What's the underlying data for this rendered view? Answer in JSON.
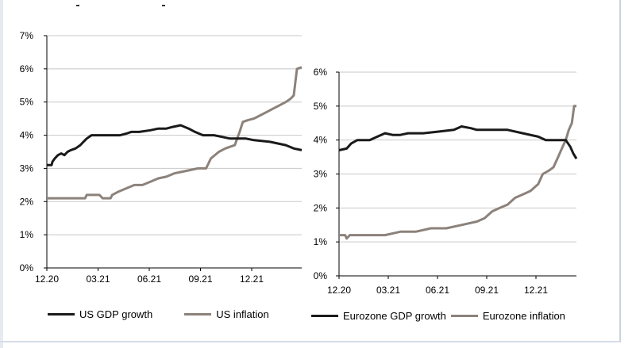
{
  "colors": {
    "gdp": "#1a1a1a",
    "inflation": "#8c827b",
    "grid": "#c8c8c8"
  },
  "chart_data": [
    {
      "type": "line",
      "x_tick_labels": [
        "12.20",
        "03.21",
        "06.21",
        "09.21",
        "12.21"
      ],
      "y_tick_labels": [
        "0%",
        "1%",
        "2%",
        "3%",
        "4%",
        "5%",
        "6%",
        "7%"
      ],
      "ylim": [
        0,
        7
      ],
      "xlim": [
        0,
        16
      ],
      "grid": "horizontal",
      "legend_position": "bottom",
      "series": [
        {
          "name": "US GDP growth",
          "color": "gdp",
          "points": [
            [
              0,
              3.1
            ],
            [
              0.3,
              3.1
            ],
            [
              0.35,
              3.2
            ],
            [
              0.5,
              3.3
            ],
            [
              0.7,
              3.4
            ],
            [
              0.9,
              3.45
            ],
            [
              1.1,
              3.4
            ],
            [
              1.3,
              3.5
            ],
            [
              1.5,
              3.55
            ],
            [
              1.8,
              3.6
            ],
            [
              2.1,
              3.7
            ],
            [
              2.3,
              3.8
            ],
            [
              2.5,
              3.9
            ],
            [
              2.8,
              4.0
            ],
            [
              3.2,
              4.0
            ],
            [
              4.0,
              4.0
            ],
            [
              4.6,
              4.0
            ],
            [
              5.0,
              4.05
            ],
            [
              5.3,
              4.1
            ],
            [
              5.8,
              4.1
            ],
            [
              6.5,
              4.15
            ],
            [
              7.0,
              4.2
            ],
            [
              7.5,
              4.2
            ],
            [
              7.9,
              4.25
            ],
            [
              8.4,
              4.3
            ],
            [
              8.9,
              4.2
            ],
            [
              9.3,
              4.1
            ],
            [
              9.8,
              4.0
            ],
            [
              10.5,
              4.0
            ],
            [
              11.0,
              3.95
            ],
            [
              11.5,
              3.9
            ],
            [
              12.5,
              3.9
            ],
            [
              13.0,
              3.85
            ],
            [
              14.0,
              3.8
            ],
            [
              14.5,
              3.75
            ],
            [
              15.0,
              3.7
            ],
            [
              15.5,
              3.6
            ],
            [
              16.0,
              3.55
            ]
          ]
        },
        {
          "name": "US inflation",
          "color": "inflation",
          "points": [
            [
              0,
              2.1
            ],
            [
              2.4,
              2.1
            ],
            [
              2.5,
              2.2
            ],
            [
              3.3,
              2.2
            ],
            [
              3.5,
              2.1
            ],
            [
              4.0,
              2.1
            ],
            [
              4.1,
              2.2
            ],
            [
              4.5,
              2.3
            ],
            [
              5.0,
              2.4
            ],
            [
              5.5,
              2.5
            ],
            [
              6.0,
              2.5
            ],
            [
              6.5,
              2.6
            ],
            [
              7.0,
              2.7
            ],
            [
              7.5,
              2.75
            ],
            [
              8.0,
              2.85
            ],
            [
              8.5,
              2.9
            ],
            [
              9.0,
              2.95
            ],
            [
              9.5,
              3.0
            ],
            [
              10.0,
              3.0
            ],
            [
              10.3,
              3.3
            ],
            [
              10.8,
              3.5
            ],
            [
              11.2,
              3.6
            ],
            [
              11.8,
              3.7
            ],
            [
              12.1,
              4.1
            ],
            [
              12.3,
              4.4
            ],
            [
              12.6,
              4.45
            ],
            [
              13.0,
              4.5
            ],
            [
              13.4,
              4.6
            ],
            [
              13.8,
              4.7
            ],
            [
              14.2,
              4.8
            ],
            [
              14.6,
              4.9
            ],
            [
              15.0,
              5.0
            ],
            [
              15.3,
              5.1
            ],
            [
              15.5,
              5.2
            ],
            [
              15.6,
              5.6
            ],
            [
              15.7,
              6.0
            ],
            [
              16.0,
              6.05
            ]
          ]
        }
      ]
    },
    {
      "type": "line",
      "x_tick_labels": [
        "12.20",
        "03.21",
        "06.21",
        "09.21",
        "12.21"
      ],
      "y_tick_labels": [
        "0%",
        "1%",
        "2%",
        "3%",
        "4%",
        "5%",
        "6%"
      ],
      "ylim": [
        0,
        6
      ],
      "xlim": [
        0,
        15.5
      ],
      "grid": "horizontal",
      "legend_position": "bottom",
      "series": [
        {
          "name": "Eurozone GDP growth",
          "color": "gdp",
          "points": [
            [
              0,
              3.7
            ],
            [
              0.5,
              3.75
            ],
            [
              0.8,
              3.9
            ],
            [
              1.2,
              4.0
            ],
            [
              2.0,
              4.0
            ],
            [
              2.5,
              4.1
            ],
            [
              3.0,
              4.2
            ],
            [
              3.5,
              4.15
            ],
            [
              4.0,
              4.15
            ],
            [
              4.5,
              4.2
            ],
            [
              5.5,
              4.2
            ],
            [
              6.5,
              4.25
            ],
            [
              7.5,
              4.3
            ],
            [
              8.0,
              4.4
            ],
            [
              8.6,
              4.35
            ],
            [
              9.0,
              4.3
            ],
            [
              10.0,
              4.3
            ],
            [
              11.0,
              4.3
            ],
            [
              12.0,
              4.2
            ],
            [
              13.0,
              4.1
            ],
            [
              13.5,
              4.0
            ],
            [
              14.0,
              4.0
            ],
            [
              14.8,
              4.0
            ],
            [
              15.1,
              3.8
            ],
            [
              15.3,
              3.6
            ],
            [
              15.5,
              3.45
            ]
          ]
        },
        {
          "name": "Eurozone inflation",
          "color": "inflation",
          "points": [
            [
              0,
              1.2
            ],
            [
              0.4,
              1.2
            ],
            [
              0.5,
              1.1
            ],
            [
              0.7,
              1.2
            ],
            [
              2.0,
              1.2
            ],
            [
              3.0,
              1.2
            ],
            [
              4.0,
              1.3
            ],
            [
              5.0,
              1.3
            ],
            [
              6.0,
              1.4
            ],
            [
              7.0,
              1.4
            ],
            [
              8.0,
              1.5
            ],
            [
              9.0,
              1.6
            ],
            [
              9.5,
              1.7
            ],
            [
              10.0,
              1.9
            ],
            [
              10.5,
              2.0
            ],
            [
              11.0,
              2.1
            ],
            [
              11.5,
              2.3
            ],
            [
              12.0,
              2.4
            ],
            [
              12.5,
              2.5
            ],
            [
              13.0,
              2.7
            ],
            [
              13.3,
              3.0
            ],
            [
              13.7,
              3.1
            ],
            [
              14.0,
              3.2
            ],
            [
              14.3,
              3.5
            ],
            [
              14.6,
              3.8
            ],
            [
              14.8,
              4.0
            ],
            [
              15.0,
              4.3
            ],
            [
              15.2,
              4.5
            ],
            [
              15.35,
              5.0
            ],
            [
              15.5,
              5.0
            ]
          ]
        }
      ]
    }
  ]
}
